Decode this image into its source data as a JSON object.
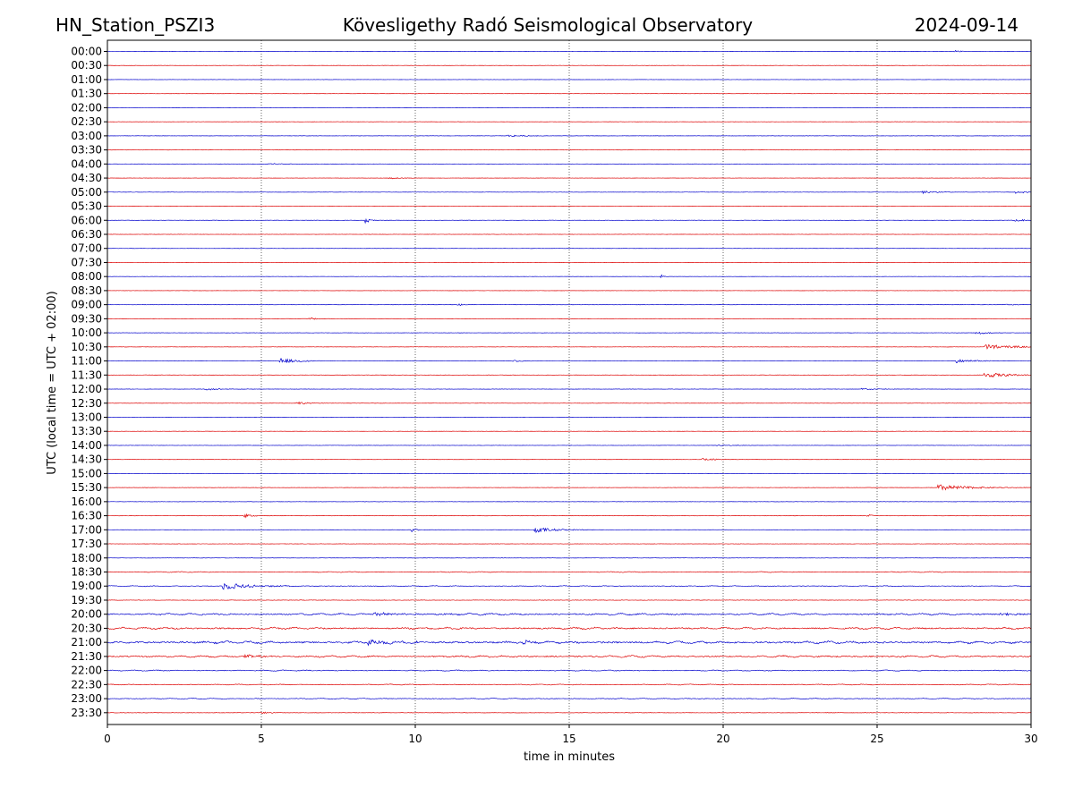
{
  "header": {
    "station": "HN_Station_PSZI3",
    "observatory": "Kövesligethy Radó Seismological Observatory",
    "date": "2024-09-14"
  },
  "chart_data": {
    "type": "line",
    "xlabel": "time in minutes",
    "ylabel": "UTC (local time = UTC + 02:00)",
    "xlim": [
      0,
      30
    ],
    "x_ticks": [
      0,
      5,
      10,
      15,
      20,
      25,
      30
    ],
    "grid": "vertical dotted at x = 5, 10, 15, 20, 25",
    "trace_colors": [
      "#0000cc",
      "#dd0000"
    ],
    "rows": [
      {
        "label": "00:00",
        "color": "#0000cc",
        "noise": 0.25,
        "events": [
          {
            "x": 27.5,
            "amp": 1.5,
            "dur": 0.2
          }
        ]
      },
      {
        "label": "00:30",
        "color": "#dd0000",
        "noise": 0.25,
        "events": []
      },
      {
        "label": "01:00",
        "color": "#0000cc",
        "noise": 0.25,
        "events": []
      },
      {
        "label": "01:30",
        "color": "#dd0000",
        "noise": 0.25,
        "events": []
      },
      {
        "label": "02:00",
        "color": "#0000cc",
        "noise": 0.25,
        "events": []
      },
      {
        "label": "02:30",
        "color": "#dd0000",
        "noise": 0.25,
        "events": []
      },
      {
        "label": "03:00",
        "color": "#0000cc",
        "noise": 0.3,
        "events": [
          {
            "x": 13.0,
            "amp": 1.2,
            "dur": 0.6
          }
        ]
      },
      {
        "label": "03:30",
        "color": "#dd0000",
        "noise": 0.25,
        "events": []
      },
      {
        "label": "04:00",
        "color": "#0000cc",
        "noise": 0.3,
        "events": [
          {
            "x": 5.3,
            "amp": 1.0,
            "dur": 0.5
          }
        ]
      },
      {
        "label": "04:30",
        "color": "#dd0000",
        "noise": 0.25,
        "events": [
          {
            "x": 9.2,
            "amp": 1.0,
            "dur": 0.4
          }
        ]
      },
      {
        "label": "05:00",
        "color": "#0000cc",
        "noise": 0.3,
        "events": [
          {
            "x": 26.5,
            "amp": 1.5,
            "dur": 0.4
          },
          {
            "x": 29.5,
            "amp": 1.5,
            "dur": 0.4
          }
        ]
      },
      {
        "label": "05:30",
        "color": "#dd0000",
        "noise": 0.25,
        "events": []
      },
      {
        "label": "06:00",
        "color": "#0000cc",
        "noise": 0.3,
        "events": [
          {
            "x": 8.4,
            "amp": 4.0,
            "dur": 0.1
          },
          {
            "x": 29.5,
            "amp": 1.2,
            "dur": 0.5
          }
        ]
      },
      {
        "label": "06:30",
        "color": "#dd0000",
        "noise": 0.25,
        "events": []
      },
      {
        "label": "07:00",
        "color": "#0000cc",
        "noise": 0.25,
        "events": []
      },
      {
        "label": "07:30",
        "color": "#dd0000",
        "noise": 0.25,
        "events": []
      },
      {
        "label": "08:00",
        "color": "#0000cc",
        "noise": 0.25,
        "events": [
          {
            "x": 18.0,
            "amp": 2.0,
            "dur": 0.1
          }
        ]
      },
      {
        "label": "08:30",
        "color": "#dd0000",
        "noise": 0.25,
        "events": []
      },
      {
        "label": "09:00",
        "color": "#0000cc",
        "noise": 0.3,
        "events": [
          {
            "x": 11.4,
            "amp": 2.0,
            "dur": 0.15
          },
          {
            "x": 29.2,
            "amp": 1.0,
            "dur": 0.3
          }
        ]
      },
      {
        "label": "09:30",
        "color": "#dd0000",
        "noise": 0.3,
        "events": [
          {
            "x": 6.6,
            "amp": 1.5,
            "dur": 0.2
          }
        ]
      },
      {
        "label": "10:00",
        "color": "#0000cc",
        "noise": 0.3,
        "events": [
          {
            "x": 28.2,
            "amp": 2.5,
            "dur": 0.3
          }
        ]
      },
      {
        "label": "10:30",
        "color": "#dd0000",
        "noise": 0.3,
        "events": [
          {
            "x": 28.5,
            "amp": 3.0,
            "dur": 0.9
          }
        ]
      },
      {
        "label": "11:00",
        "color": "#0000cc",
        "noise": 0.3,
        "events": [
          {
            "x": 5.6,
            "amp": 3.0,
            "dur": 0.6
          },
          {
            "x": 13.2,
            "amp": 1.2,
            "dur": 0.3
          },
          {
            "x": 27.6,
            "amp": 2.0,
            "dur": 0.6
          }
        ]
      },
      {
        "label": "11:30",
        "color": "#dd0000",
        "noise": 0.3,
        "events": [
          {
            "x": 28.5,
            "amp": 3.0,
            "dur": 0.8
          }
        ]
      },
      {
        "label": "12:00",
        "color": "#0000cc",
        "noise": 0.3,
        "events": [
          {
            "x": 3.2,
            "amp": 1.2,
            "dur": 0.6
          },
          {
            "x": 24.5,
            "amp": 1.0,
            "dur": 0.6
          }
        ]
      },
      {
        "label": "12:30",
        "color": "#dd0000",
        "noise": 0.3,
        "events": [
          {
            "x": 6.2,
            "amp": 1.5,
            "dur": 0.4
          }
        ]
      },
      {
        "label": "13:00",
        "color": "#0000cc",
        "noise": 0.25,
        "events": []
      },
      {
        "label": "13:30",
        "color": "#dd0000",
        "noise": 0.25,
        "events": []
      },
      {
        "label": "14:00",
        "color": "#0000cc",
        "noise": 0.3,
        "events": [
          {
            "x": 19.8,
            "amp": 1.2,
            "dur": 0.5
          }
        ]
      },
      {
        "label": "14:30",
        "color": "#dd0000",
        "noise": 0.3,
        "events": [
          {
            "x": 19.3,
            "amp": 1.5,
            "dur": 0.5
          }
        ]
      },
      {
        "label": "15:00",
        "color": "#0000cc",
        "noise": 0.25,
        "events": []
      },
      {
        "label": "15:30",
        "color": "#dd0000",
        "noise": 0.3,
        "events": [
          {
            "x": 27.0,
            "amp": 3.5,
            "dur": 1.0
          }
        ]
      },
      {
        "label": "16:00",
        "color": "#0000cc",
        "noise": 0.3,
        "events": []
      },
      {
        "label": "16:30",
        "color": "#dd0000",
        "noise": 0.4,
        "events": [
          {
            "x": 4.5,
            "amp": 2.0,
            "dur": 0.3
          },
          {
            "x": 24.7,
            "amp": 2.0,
            "dur": 0.15
          }
        ]
      },
      {
        "label": "17:00",
        "color": "#0000cc",
        "noise": 0.3,
        "events": [
          {
            "x": 9.9,
            "amp": 2.5,
            "dur": 0.15
          },
          {
            "x": 13.9,
            "amp": 3.0,
            "dur": 0.7
          }
        ]
      },
      {
        "label": "17:30",
        "color": "#dd0000",
        "noise": 0.3,
        "events": []
      },
      {
        "label": "18:00",
        "color": "#0000cc",
        "noise": 0.3,
        "events": []
      },
      {
        "label": "18:30",
        "color": "#dd0000",
        "noise": 0.55,
        "events": []
      },
      {
        "label": "19:00",
        "color": "#0000cc",
        "noise": 0.6,
        "events": [
          {
            "x": 3.8,
            "amp": 4.0,
            "dur": 0.9
          }
        ]
      },
      {
        "label": "19:30",
        "color": "#dd0000",
        "noise": 0.5,
        "events": []
      },
      {
        "label": "20:00",
        "color": "#0000cc",
        "noise": 1.2,
        "events": [
          {
            "x": 8.7,
            "amp": 2.0,
            "dur": 1.0
          },
          {
            "x": 29.0,
            "amp": 2.5,
            "dur": 0.6
          }
        ]
      },
      {
        "label": "20:30",
        "color": "#dd0000",
        "noise": 1.3,
        "events": []
      },
      {
        "label": "21:00",
        "color": "#0000cc",
        "noise": 1.6,
        "events": [
          {
            "x": 8.5,
            "amp": 3.0,
            "dur": 0.8
          },
          {
            "x": 13.5,
            "amp": 2.5,
            "dur": 0.4
          }
        ]
      },
      {
        "label": "21:30",
        "color": "#dd0000",
        "noise": 1.2,
        "events": [
          {
            "x": 4.5,
            "amp": 2.0,
            "dur": 0.5
          }
        ]
      },
      {
        "label": "22:00",
        "color": "#0000cc",
        "noise": 0.7,
        "events": []
      },
      {
        "label": "22:30",
        "color": "#dd0000",
        "noise": 0.6,
        "events": []
      },
      {
        "label": "23:00",
        "color": "#0000cc",
        "noise": 0.6,
        "events": []
      },
      {
        "label": "23:30",
        "color": "#dd0000",
        "noise": 0.4,
        "events": [
          {
            "x": 5.0,
            "amp": 1.0,
            "dur": 0.5
          }
        ]
      }
    ]
  }
}
